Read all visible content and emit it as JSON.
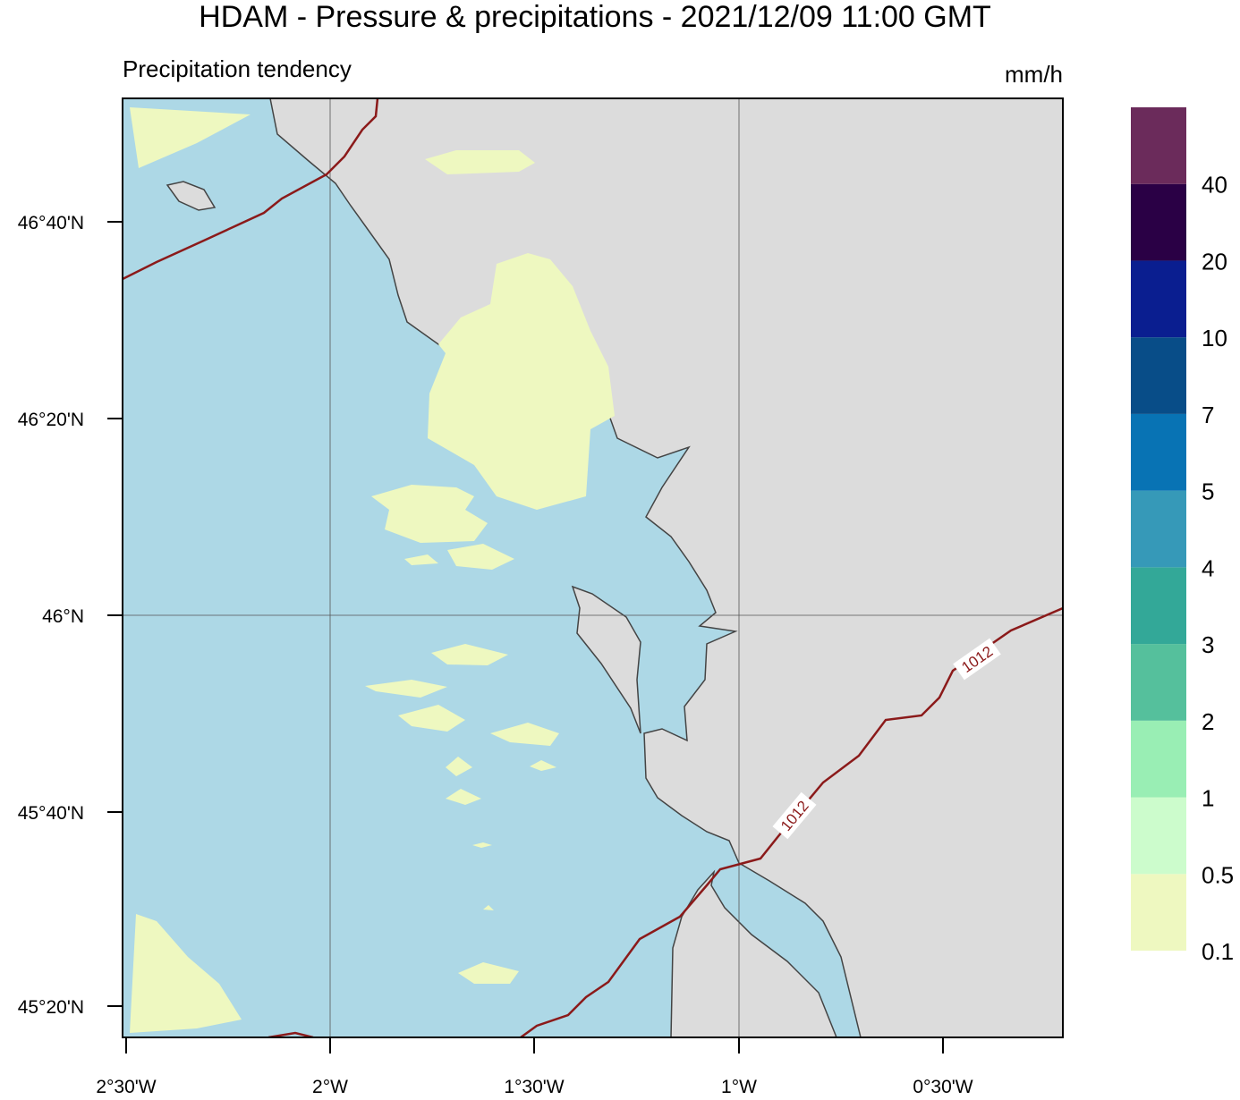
{
  "header": {
    "title": "HDAM - Pressure & precipitations  -  2021/12/09  11:00 GMT",
    "subtitle": "Precipitation tendency",
    "unit": "mm/h"
  },
  "colorbar": {
    "labels": [
      "0.1",
      "0.5",
      "1",
      "2",
      "3",
      "4",
      "5",
      "7",
      "10",
      "20",
      "40"
    ]
  },
  "lat_labels": [
    "46°40'N",
    "46°20'N",
    "46°N",
    "45°40'N",
    "45°20'N"
  ],
  "lon_labels": [
    "2°30'W",
    "2°W",
    "1°30'W",
    "1°W",
    "0°30'W"
  ],
  "isobar_labels": [
    "1012",
    "1012"
  ]
}
